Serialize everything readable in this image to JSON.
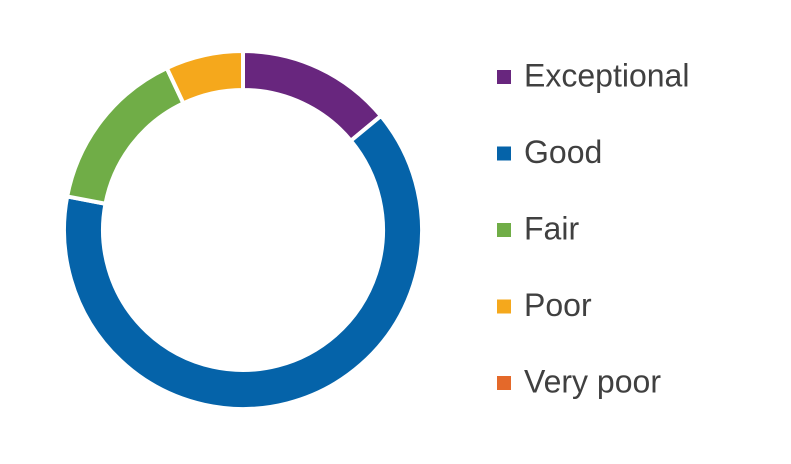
{
  "chart_data": {
    "type": "donut",
    "categories": [
      "Exceptional",
      "Good",
      "Fair",
      "Poor",
      "Very poor"
    ],
    "values": [
      14,
      64,
      15,
      7,
      0
    ],
    "colors": [
      "#68267e",
      "#0563a9",
      "#70ad47",
      "#f5a81c",
      "#e4692a"
    ],
    "legend": "right"
  }
}
